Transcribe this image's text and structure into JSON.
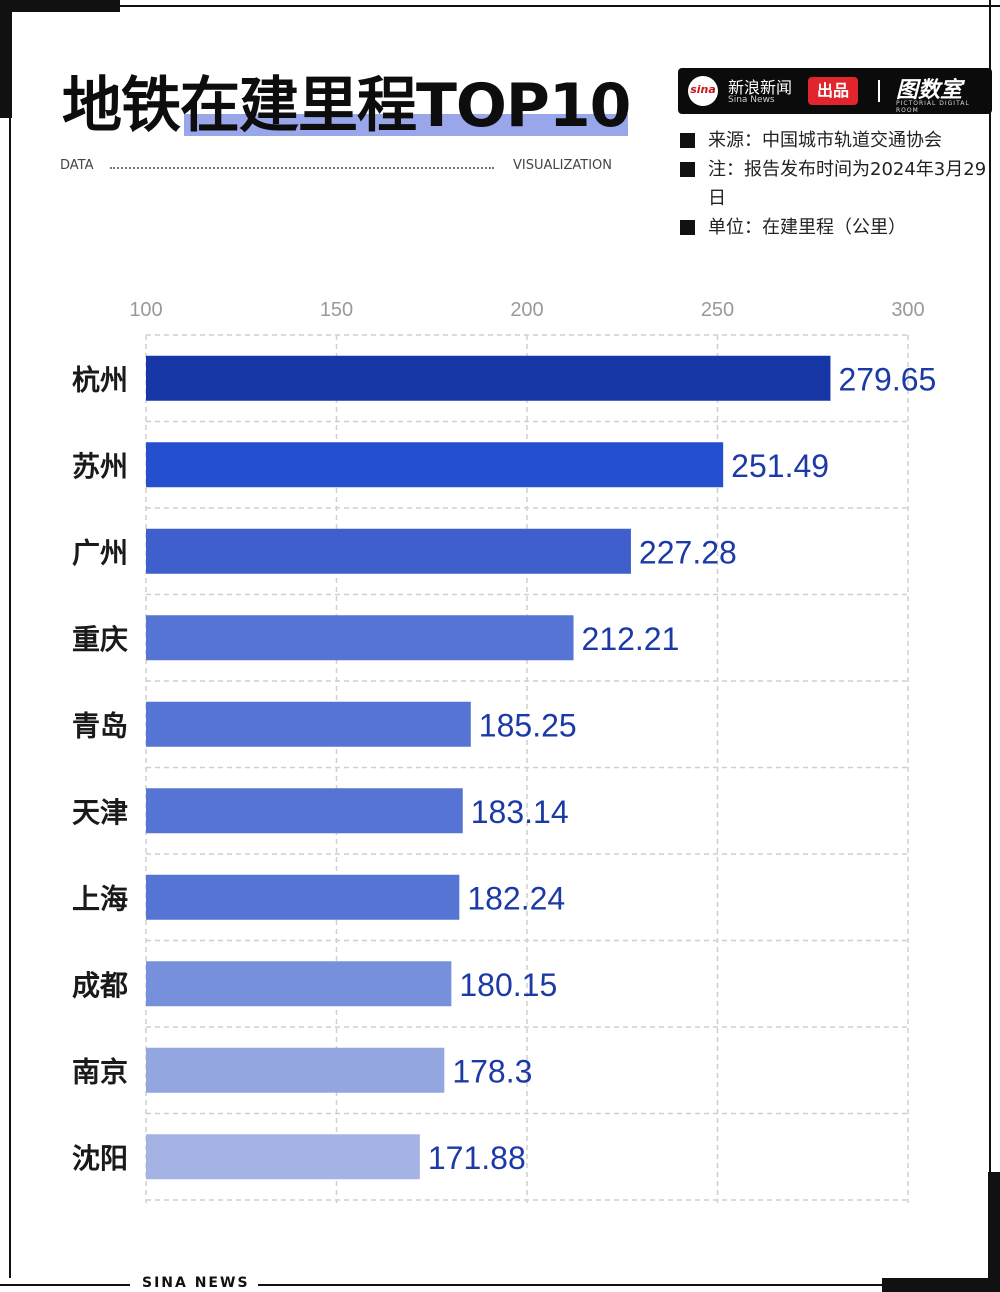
{
  "title": "地铁在建里程TOP10",
  "subtitle_left": "DATA",
  "subtitle_right": "VISUALIZATION",
  "brand": {
    "logo": "sina",
    "name": "新浪新闻",
    "name_en": "Sina News",
    "badge": "出品",
    "room": "图数室",
    "room_en": "PICTORIAL DIGITAL ROOM"
  },
  "notes": [
    "来源：中国城市轨道交通协会",
    "注：报告发布时间为2024年3月29日",
    "单位：在建里程（公里）"
  ],
  "footer": "SINA NEWS",
  "colors": {
    "bar_dark": "#1737a6",
    "bar_blue": "#2450d0",
    "bar_mid": "#3f5fcc",
    "bar_medium": "#5574d4",
    "bar_light": "#7690dc",
    "bar_lighter": "#93a6e0",
    "bar_lightest": "#a5b3e4",
    "label_color": "#1b3aa6",
    "highlight": "#9aa6ea"
  },
  "chart_data": {
    "type": "bar",
    "orientation": "horizontal",
    "categories": [
      "杭州",
      "苏州",
      "广州",
      "重庆",
      "青岛",
      "天津",
      "上海",
      "成都",
      "南京",
      "沈阳"
    ],
    "values": [
      279.65,
      251.49,
      227.28,
      212.21,
      185.25,
      183.14,
      182.24,
      180.15,
      178.3,
      171.88
    ],
    "xlim": [
      100,
      300
    ],
    "ticks": [
      100,
      150,
      200,
      250,
      300
    ],
    "tick_labels": [
      "100",
      "150",
      "200",
      "250",
      "300"
    ],
    "value_labels": [
      "279.65",
      "251.49",
      "227.28",
      "212.21",
      "185.25",
      "183.14",
      "182.24",
      "180.15",
      "178.3",
      "171.88"
    ],
    "grid": true,
    "bar_colors": [
      "#1737a6",
      "#2450d0",
      "#3f5fcc",
      "#5574d4",
      "#5574d4",
      "#5574d4",
      "#5574d4",
      "#7690dc",
      "#93a6e0",
      "#a5b3e4"
    ]
  }
}
